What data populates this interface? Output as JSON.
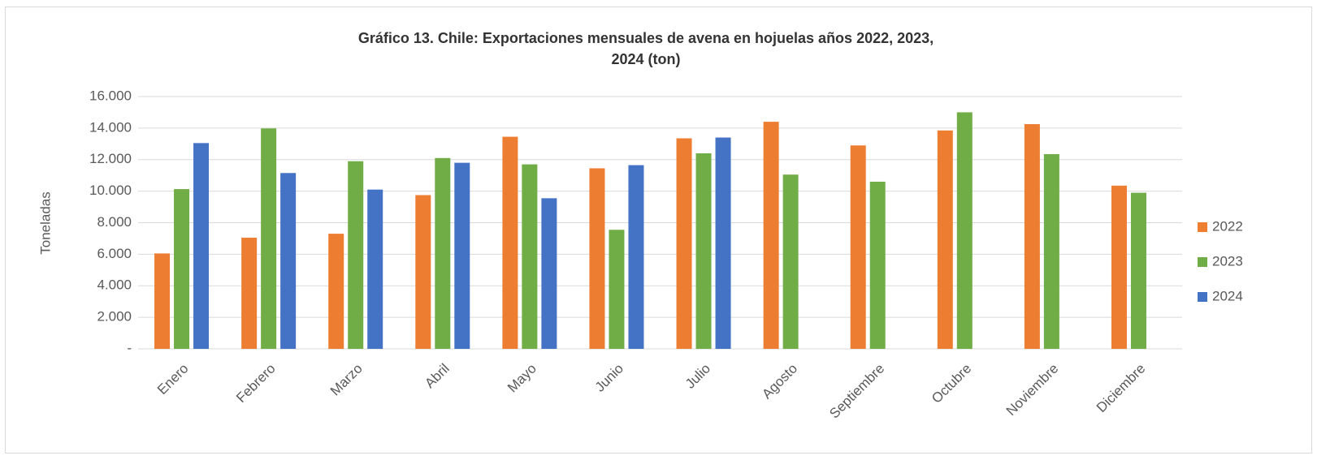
{
  "chart_data": {
    "type": "bar",
    "title": [
      "Gráfico 13. Chile: Exportaciones mensuales de avena en hojuelas años 2022, 2023,",
      "2024 (ton)"
    ],
    "y_label": "Toneladas",
    "categories": [
      "Enero",
      "Febrero",
      "Marzo",
      "Abril",
      "Mayo",
      "Junio",
      "Julio",
      "Agosto",
      "Septiembre",
      "Octubre",
      "Noviembre",
      "Diciembre"
    ],
    "series": [
      {
        "name": "2022",
        "color": "#ed7d31",
        "values": [
          6050,
          7050,
          7300,
          9750,
          13450,
          11450,
          13350,
          14400,
          12900,
          13850,
          14250,
          10350
        ]
      },
      {
        "name": "2023",
        "color": "#70ad47",
        "values": [
          10130,
          13980,
          11900,
          12100,
          11700,
          7550,
          12400,
          11050,
          10600,
          15000,
          12350,
          9900
        ]
      },
      {
        "name": "2024",
        "color": "#4472c4",
        "values": [
          13050,
          11150,
          10100,
          11800,
          9550,
          11650,
          13400,
          null,
          null,
          null,
          null,
          null
        ]
      }
    ],
    "ylim": [
      0,
      16000
    ],
    "yticks": [
      {
        "value": 0,
        "label": "-"
      },
      {
        "value": 2000,
        "label": "2.000"
      },
      {
        "value": 4000,
        "label": "4.000"
      },
      {
        "value": 6000,
        "label": "6.000"
      },
      {
        "value": 8000,
        "label": "8.000"
      },
      {
        "value": 10000,
        "label": "10.000"
      },
      {
        "value": 12000,
        "label": "12.000"
      },
      {
        "value": 14000,
        "label": "14.000"
      },
      {
        "value": 16000,
        "label": "16.000"
      }
    ],
    "grid": true,
    "legend": "right"
  }
}
